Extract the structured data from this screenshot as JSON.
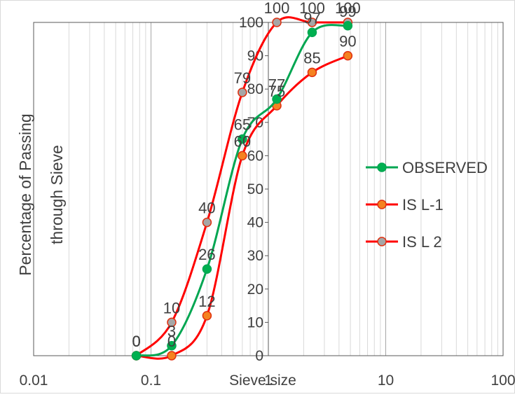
{
  "chart_data": {
    "type": "line",
    "x_scale": "log",
    "xlim": [
      0.01,
      100
    ],
    "ylim": [
      0,
      100
    ],
    "xlabel": "Sieve size",
    "ylabel_lines": [
      "Percentage of Passing",
      "through Sieve"
    ],
    "x_ticks": [
      0.01,
      0.1,
      1,
      10,
      100
    ],
    "x_tick_labels": [
      "0.01",
      "0.1",
      "1",
      "10",
      "100"
    ],
    "y_ticks": [
      0,
      10,
      20,
      30,
      40,
      50,
      60,
      70,
      80,
      90,
      100
    ],
    "y_tick_labels": [
      "0",
      "10",
      "20",
      "30",
      "40",
      "50",
      "60",
      "70",
      "80",
      "90",
      "100"
    ],
    "grid": true,
    "legend_position": "right",
    "series": [
      {
        "name": "OBSERVED",
        "line_color": "#00a651",
        "marker_fill": "#00b050",
        "marker_stroke": "#00a651",
        "x": [
          0.075,
          0.15,
          0.3,
          0.6,
          1.18,
          2.36,
          4.75
        ],
        "y": [
          0,
          3,
          26,
          65,
          77,
          97,
          99
        ],
        "labels": [
          "0",
          "3",
          "26",
          "65",
          "77",
          "97",
          "99"
        ]
      },
      {
        "name": "IS L-1",
        "line_color": "#ff0000",
        "marker_fill": "#f58220",
        "marker_stroke": "#e03010",
        "x": [
          0.075,
          0.15,
          0.3,
          0.6,
          1.18,
          2.36,
          4.75
        ],
        "y": [
          0,
          0,
          12,
          60,
          75,
          85,
          90
        ],
        "labels": [
          "0",
          "0",
          "12",
          "60",
          "75",
          "85",
          "90"
        ]
      },
      {
        "name": "IS L 2",
        "line_color": "#ff0000",
        "marker_fill": "#a6a6a6",
        "marker_stroke": "#e03010",
        "x": [
          0.075,
          0.15,
          0.3,
          0.6,
          1.18,
          2.36,
          4.75
        ],
        "y": [
          0,
          10,
          40,
          79,
          100,
          100,
          100
        ],
        "labels": [
          "0",
          "10",
          "40",
          "79",
          "100",
          "100",
          "100"
        ]
      }
    ]
  }
}
